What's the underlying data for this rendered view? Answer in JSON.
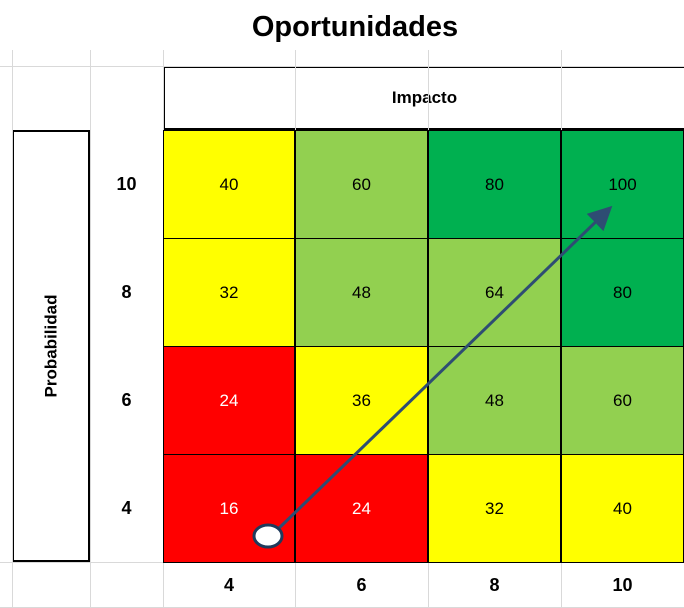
{
  "title": "Oportunidades",
  "column_header": "Impacto",
  "row_header": "Probabilidad",
  "columns": [
    "4",
    "6",
    "8",
    "10"
  ],
  "rows": [
    {
      "label": "10",
      "values": [
        40,
        60,
        80,
        100
      ],
      "colors": [
        "#ffff00",
        "#92d050",
        "#00b050",
        "#00b050"
      ]
    },
    {
      "label": "8",
      "values": [
        32,
        48,
        64,
        80
      ],
      "colors": [
        "#ffff00",
        "#92d050",
        "#92d050",
        "#00b050"
      ]
    },
    {
      "label": "6",
      "values": [
        24,
        36,
        48,
        60
      ],
      "colors": [
        "#ff0000",
        "#ffff00",
        "#92d050",
        "#92d050"
      ]
    },
    {
      "label": "4",
      "values": [
        16,
        24,
        32,
        40
      ],
      "colors": [
        "#ff0000",
        "#ff0000",
        "#ffff00",
        "#ffff00"
      ]
    }
  ]
}
